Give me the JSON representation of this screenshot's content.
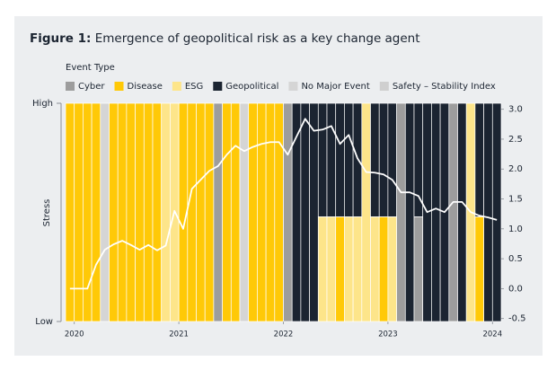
{
  "chart_data": {
    "type": "bar",
    "title_label": "Figure 1:",
    "title": "Emergence of geopolitical risk as a key change agent",
    "legend_title": "Event Type",
    "y_label": "Stress",
    "categories": [
      null,
      null,
      null,
      null,
      null,
      null,
      null,
      null,
      null,
      null,
      null,
      null,
      null,
      null,
      null,
      null,
      null,
      null,
      null,
      null,
      null,
      null,
      null,
      null,
      null,
      null,
      null,
      null,
      null,
      null,
      null,
      null,
      null,
      null,
      null,
      null,
      null,
      null,
      null,
      null,
      null,
      null,
      null,
      null,
      null,
      null,
      null,
      null,
      null,
      null
    ],
    "xlim": [
      0,
      50
    ],
    "xticks": [
      {
        "value": 1,
        "label": "2020"
      },
      {
        "value": 13,
        "label": "2021"
      },
      {
        "value": 25,
        "label": "2022"
      },
      {
        "value": 37,
        "label": "2023"
      },
      {
        "value": 49,
        "label": "2024"
      }
    ],
    "ylim": [
      0,
      1
    ],
    "yticks": [
      {
        "value": 0,
        "label": "Low"
      },
      {
        "value": 1,
        "label": "High"
      }
    ],
    "y2lim": [
      -0.55,
      3.1
    ],
    "y2ticks": [
      {
        "value": 3,
        "label": "3.0"
      },
      2.5,
      {
        "value": 2,
        "label": "2.0"
      },
      1.5,
      {
        "value": 1,
        "label": "1.0"
      },
      0.5,
      {
        "value": 0,
        "label": "0.0"
      },
      -0.5
    ],
    "series": [
      {
        "name": "Cyber",
        "color": "#9d9d9d",
        "values": [
          0,
          0,
          0,
          0,
          0,
          0,
          0,
          0,
          0,
          0,
          0,
          0,
          0,
          0,
          0,
          0,
          0,
          1,
          0,
          0,
          0,
          0,
          0,
          0,
          0,
          1,
          0,
          0,
          0,
          0,
          0,
          0,
          0,
          0,
          0,
          0,
          0,
          0,
          1,
          0,
          0.48,
          0,
          0,
          0,
          1,
          0,
          0,
          0,
          0,
          0
        ]
      },
      {
        "name": "Disease",
        "color": "#ffc907",
        "values": [
          1,
          1,
          1,
          1,
          0,
          1,
          1,
          1,
          1,
          1,
          1,
          0,
          0,
          1,
          1,
          1,
          1,
          0,
          1,
          1,
          0,
          1,
          1,
          1,
          1,
          0,
          0,
          0,
          0,
          0,
          0,
          0.48,
          0,
          0,
          0,
          0,
          0.48,
          0,
          0,
          0,
          0,
          0,
          0,
          0,
          0,
          0,
          0,
          0.48,
          0,
          0
        ]
      },
      {
        "name": "ESG",
        "color": "#fde58a",
        "values": [
          0,
          0,
          0,
          0,
          0,
          0,
          0,
          0,
          0,
          0,
          0,
          1,
          1,
          0,
          0,
          0,
          0,
          0,
          0,
          0,
          0,
          0,
          0,
          0,
          0,
          0,
          0,
          0,
          0,
          0.48,
          0.48,
          0,
          0.48,
          0.48,
          1,
          0.48,
          0,
          0.48,
          0,
          0,
          0,
          0,
          0,
          0,
          0,
          0,
          1,
          0,
          0,
          0
        ]
      },
      {
        "name": "Geopolitical",
        "color": "#1b2431",
        "values": [
          0,
          0,
          0,
          0,
          0,
          0,
          0,
          0,
          0,
          0,
          0,
          0,
          0,
          0,
          0,
          0,
          0,
          0,
          0,
          0,
          0,
          0,
          0,
          0,
          0,
          0,
          1,
          1,
          1,
          0.52,
          0.52,
          0.52,
          0.52,
          0.52,
          0,
          0.52,
          0.52,
          0.52,
          0,
          1,
          0.52,
          1,
          1,
          1,
          0,
          1,
          0,
          0.52,
          1,
          1
        ]
      },
      {
        "name": "No Major Event",
        "color": "#d5d5d5",
        "values": [
          0,
          0,
          0,
          0,
          1,
          0,
          0,
          0,
          0,
          0,
          0,
          0,
          0,
          0,
          0,
          0,
          0,
          0,
          0,
          0,
          1,
          0,
          0,
          0,
          0,
          0,
          0,
          0,
          0,
          0,
          0,
          0,
          0,
          0,
          0,
          0,
          0,
          0,
          0,
          0,
          0,
          0,
          0,
          0,
          0,
          0,
          0,
          0,
          0,
          0
        ]
      },
      {
        "name": "Safety – Stability Index",
        "type": "line",
        "axis": "y2",
        "color": "#ffffff",
        "legend_color": "#cfcfcf",
        "values": [
          0,
          0,
          0,
          0.4,
          0.65,
          0.74,
          0.8,
          0.73,
          0.65,
          0.73,
          0.64,
          0.72,
          1.3,
          1.0,
          1.67,
          1.82,
          1.97,
          2.05,
          2.24,
          2.39,
          2.3,
          2.37,
          2.42,
          2.45,
          2.45,
          2.24,
          2.54,
          2.84,
          2.64,
          2.66,
          2.72,
          2.42,
          2.57,
          2.18,
          1.95,
          1.94,
          1.91,
          1.82,
          1.61,
          1.61,
          1.55,
          1.28,
          1.34,
          1.28,
          1.45,
          1.45,
          1.28,
          1.22,
          1.19,
          1.15
        ]
      }
    ]
  }
}
